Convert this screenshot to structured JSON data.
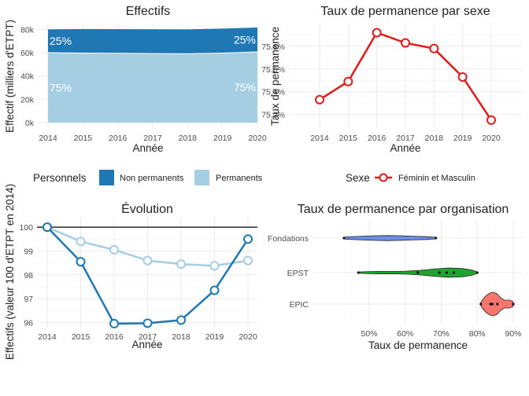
{
  "chart_data": [
    {
      "type": "area",
      "title": "Effectifs",
      "xlabel": "Année",
      "ylabel": "Effectif (milliers d'ETPT)",
      "x": [
        2014,
        2015,
        2016,
        2017,
        2018,
        2019,
        2020
      ],
      "ylim": [
        0,
        85000
      ],
      "y_ticks": [
        "0k",
        "20k",
        "40k",
        "60k",
        "80k"
      ],
      "series": [
        {
          "name": "Permanents",
          "color": "#a6cee3",
          "values": [
            60000,
            59700,
            59500,
            59300,
            59100,
            59700,
            60700
          ]
        },
        {
          "name": "Non permanents",
          "color": "#1f78b4",
          "values": [
            20000,
            20600,
            20700,
            20800,
            20900,
            21000,
            20900
          ]
        }
      ],
      "annotations": [
        {
          "x": 2014,
          "series": "Non permanents",
          "label": "25%"
        },
        {
          "x": 2020,
          "series": "Non permanents",
          "label": "25%"
        },
        {
          "x": 2014,
          "series": "Permanents",
          "label": "75%"
        },
        {
          "x": 2020,
          "series": "Permanents",
          "label": "75%"
        }
      ],
      "legend": {
        "title": "Personnels",
        "entries": [
          "Non permanents",
          "Permanents"
        ],
        "position": "bottom"
      }
    },
    {
      "type": "line",
      "title": "Taux de permanence par sexe",
      "xlabel": "Année",
      "ylabel": "Taux de permanence",
      "x": [
        2014,
        2015,
        2016,
        2017,
        2018,
        2019,
        2020
      ],
      "ylim": [
        75.08,
        76.0
      ],
      "y_ticks": [
        "75.2%",
        "75.4%",
        "75.6%",
        "75.8%"
      ],
      "series": [
        {
          "name": "Féminin et Masculin",
          "color": "#e31a1c",
          "values": [
            75.33,
            75.49,
            75.92,
            75.83,
            75.78,
            75.53,
            75.15
          ]
        }
      ],
      "legend": {
        "title": "Sexe",
        "entries": [
          "Féminin et Masculin"
        ],
        "position": "bottom"
      }
    },
    {
      "type": "line",
      "title": "Évolution",
      "xlabel": "Année",
      "ylabel": "Effectifs (valeur 100 d'ETPT en 2014)",
      "x": [
        2014,
        2015,
        2016,
        2017,
        2018,
        2019,
        2020
      ],
      "ylim": [
        95.75,
        100.4
      ],
      "y_ticks": [
        "96",
        "97",
        "98",
        "99",
        "100"
      ],
      "reference_line": 100,
      "series": [
        {
          "name": "Non permanents",
          "color": "#1f78b4",
          "values": [
            100,
            98.55,
            95.95,
            95.97,
            96.1,
            97.35,
            99.5
          ]
        },
        {
          "name": "Permanents",
          "color": "#a6cee3",
          "values": [
            100,
            99.4,
            99.05,
            98.6,
            98.45,
            98.38,
            98.6
          ]
        }
      ]
    },
    {
      "type": "violin",
      "title": "Taux de permanence par organisation",
      "xlabel": "Taux de permanence",
      "ylabel": "",
      "xlim": [
        40,
        92
      ],
      "x_ticks": [
        "50%",
        "60%",
        "70%",
        "80%",
        "90%"
      ],
      "categories": [
        "Fondations",
        "EPST",
        "EPIC"
      ],
      "series": [
        {
          "name": "Fondations",
          "color": "#6b8eea",
          "min": 43,
          "max": 68.5,
          "points": [
            43,
            68.5
          ]
        },
        {
          "name": "EPST",
          "color": "#1fa52f",
          "min": 47,
          "max": 80,
          "points": [
            47,
            63.5,
            69.5,
            71.5,
            73.5,
            80
          ]
        },
        {
          "name": "EPIC",
          "color": "#f8766d",
          "min": 81,
          "max": 90,
          "points": [
            81,
            83.7,
            84.2,
            85.6,
            90
          ]
        }
      ]
    }
  ]
}
